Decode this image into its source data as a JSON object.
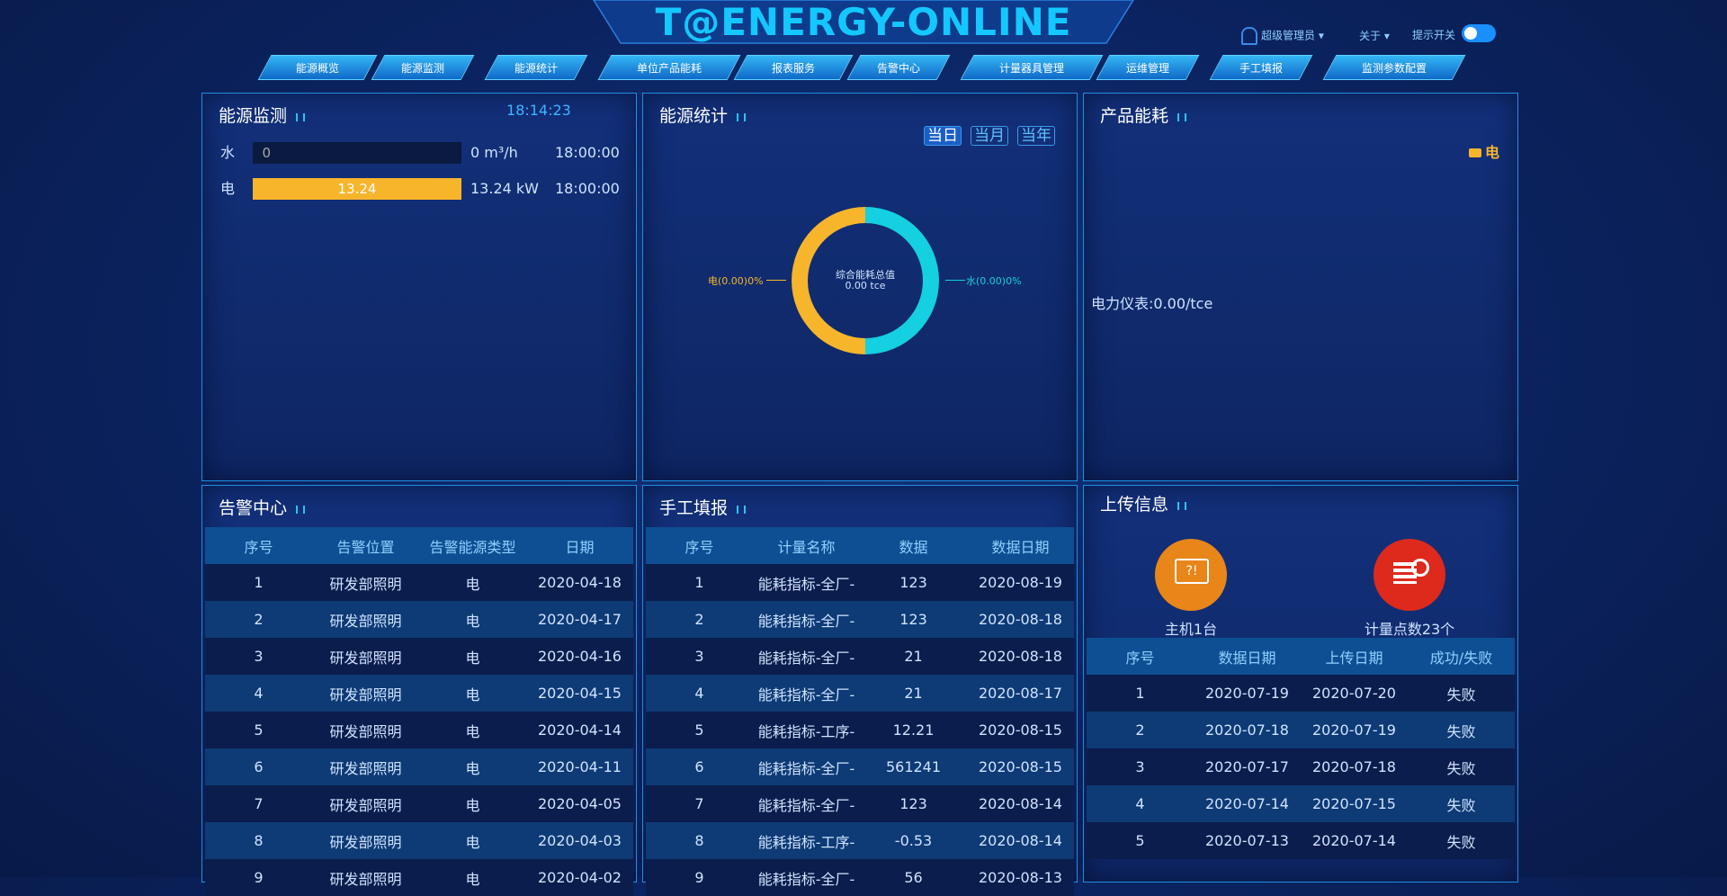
{
  "header": {
    "logo": "T@ENERGY-ONLINE",
    "user": "超级管理员",
    "about": "关于",
    "switch_label": "提示开关"
  },
  "nav": [
    "能源概览",
    "能源监测",
    "能源统计",
    "单位产品能耗",
    "报表服务",
    "告警中心",
    "计量器具管理",
    "运维管理",
    "手工填报",
    "监测参数配置"
  ],
  "energy_monitor": {
    "title": "能源监测",
    "time": "18:14:23",
    "rows": [
      {
        "label": "水",
        "value": 0,
        "value_label": "0",
        "reading": "0 m³/h",
        "time": "18:00:00"
      },
      {
        "label": "电",
        "value": 13.24,
        "value_label": "13.24",
        "reading": "13.24 kW",
        "time": "18:00:00"
      }
    ]
  },
  "energy_stats": {
    "title": "能源统计",
    "buttons": [
      "当日",
      "当月",
      "当年"
    ],
    "center_title": "综合能耗总值",
    "center_value": "0.00 tce",
    "left_label": "电(0.00)0%",
    "right_label": "水(0.00)0%"
  },
  "product_energy": {
    "title": "产品能耗",
    "legend": "电",
    "meter_text": "电力仪表:0.00/tce"
  },
  "alarm_center": {
    "title": "告警中心",
    "columns": [
      "序号",
      "告警位置",
      "告警能源类型",
      "日期"
    ],
    "rows": [
      [
        "1",
        "研发部照明",
        "电",
        "2020-04-18"
      ],
      [
        "2",
        "研发部照明",
        "电",
        "2020-04-17"
      ],
      [
        "3",
        "研发部照明",
        "电",
        "2020-04-16"
      ],
      [
        "4",
        "研发部照明",
        "电",
        "2020-04-15"
      ],
      [
        "5",
        "研发部照明",
        "电",
        "2020-04-14"
      ],
      [
        "6",
        "研发部照明",
        "电",
        "2020-04-11"
      ],
      [
        "7",
        "研发部照明",
        "电",
        "2020-04-05"
      ],
      [
        "8",
        "研发部照明",
        "电",
        "2020-04-03"
      ],
      [
        "9",
        "研发部照明",
        "电",
        "2020-04-02"
      ]
    ]
  },
  "manual_entry": {
    "title": "手工填报",
    "columns": [
      "序号",
      "计量名称",
      "数据",
      "数据日期"
    ],
    "rows": [
      [
        "1",
        "能耗指标-全厂-",
        "123",
        "2020-08-19"
      ],
      [
        "2",
        "能耗指标-全厂-",
        "123",
        "2020-08-18"
      ],
      [
        "3",
        "能耗指标-全厂-",
        "21",
        "2020-08-18"
      ],
      [
        "4",
        "能耗指标-全厂-",
        "21",
        "2020-08-17"
      ],
      [
        "5",
        "能耗指标-工序-",
        "12.21",
        "2020-08-15"
      ],
      [
        "6",
        "能耗指标-全厂-",
        "561241",
        "2020-08-15"
      ],
      [
        "7",
        "能耗指标-全厂-",
        "123",
        "2020-08-14"
      ],
      [
        "8",
        "能耗指标-工序-",
        "-0.53",
        "2020-08-14"
      ],
      [
        "9",
        "能耗指标-全厂-",
        "56",
        "2020-08-13"
      ]
    ]
  },
  "upload_info": {
    "title": "上传信息",
    "host_label": "主机1台",
    "points_label": "计量点数23个",
    "columns": [
      "序号",
      "数据日期",
      "上传日期",
      "成功/失败"
    ],
    "rows": [
      [
        "1",
        "2020-07-19",
        "2020-07-20",
        "失败"
      ],
      [
        "2",
        "2020-07-18",
        "2020-07-19",
        "失败"
      ],
      [
        "3",
        "2020-07-17",
        "2020-07-18",
        "失败"
      ],
      [
        "4",
        "2020-07-14",
        "2020-07-15",
        "失败"
      ],
      [
        "5",
        "2020-07-13",
        "2020-07-14",
        "失败"
      ]
    ]
  }
}
